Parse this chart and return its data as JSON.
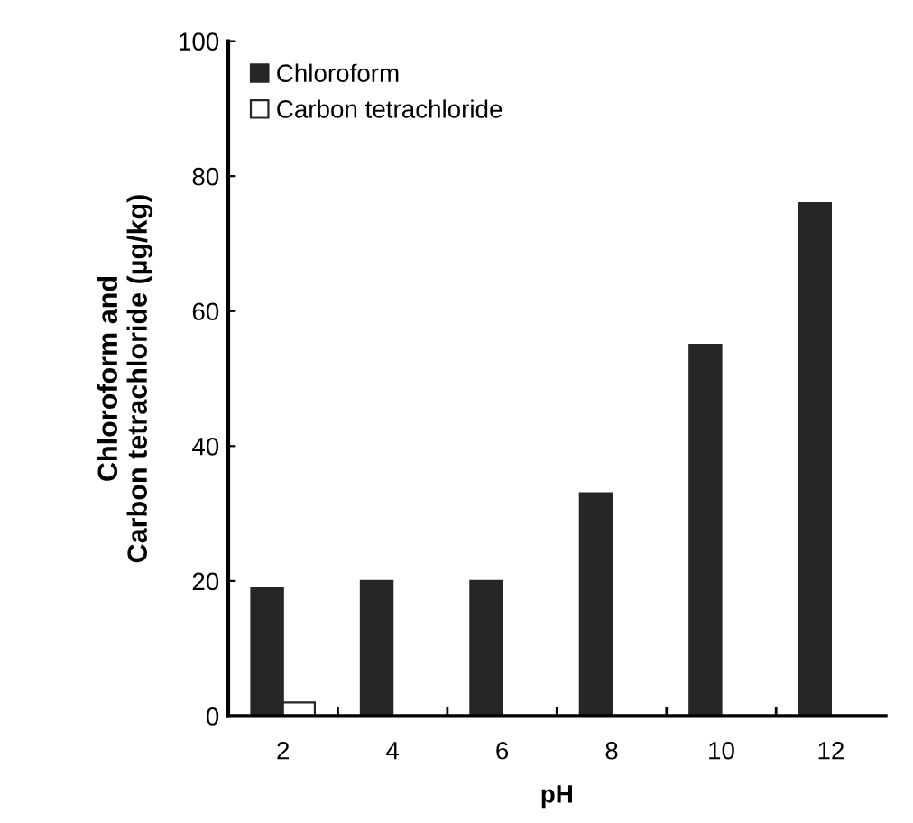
{
  "chart_data": {
    "type": "bar",
    "xlabel": "pH",
    "ylabel": "Chloroform and\nCarbon tetrachloride (µg/kg)",
    "categories": [
      "2",
      "4",
      "6",
      "8",
      "10",
      "12"
    ],
    "series": [
      {
        "name": "Chloroform",
        "color": "#262626",
        "values": [
          19,
          20,
          20,
          33,
          55,
          76
        ]
      },
      {
        "name": "Carbon tetrachloride",
        "color": "#ffffff",
        "values": [
          2,
          null,
          null,
          null,
          null,
          null
        ]
      }
    ],
    "ylim": [
      0,
      100
    ],
    "yticks": [
      0,
      20,
      40,
      60,
      80,
      100
    ],
    "grid": false,
    "legend": "top left"
  }
}
